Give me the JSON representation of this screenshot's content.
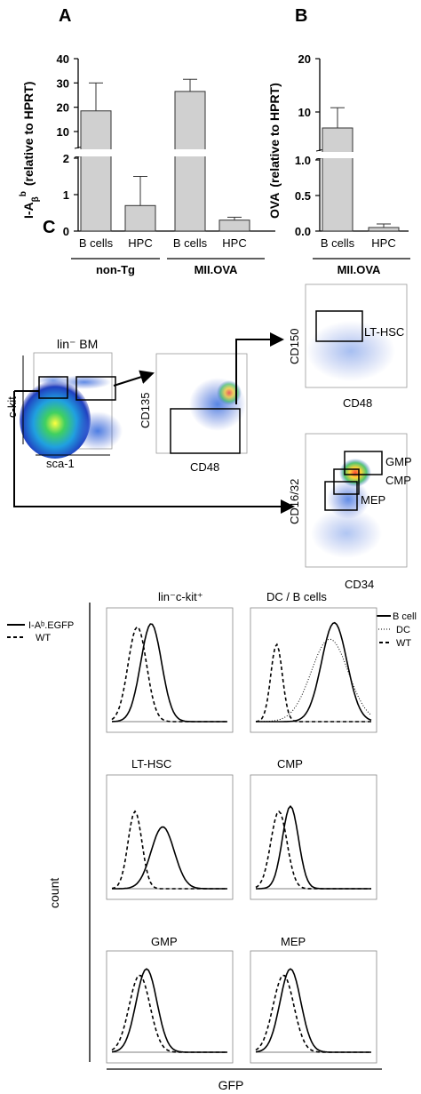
{
  "panels": {
    "a": "A",
    "b": "B",
    "c": "C"
  },
  "chart_data": [
    {
      "type": "bar",
      "panel": "A",
      "ylabel_main": "I-A",
      "ylabel_sub": "β",
      "ylabel_sup": "b",
      "ylabel_rest": "(relative to HPRT)",
      "axis_break": true,
      "upper_ticks": [
        "10",
        "20",
        "30",
        "40"
      ],
      "lower_ticks": [
        "0",
        "1",
        "2"
      ],
      "categories": [
        "B cells",
        "HPC",
        "B cells",
        "HPC"
      ],
      "groups": [
        "non-Tg",
        "MII.OVA"
      ],
      "values": [
        18.5,
        0.7,
        26.5,
        0.3
      ],
      "errors": [
        11.5,
        0.8,
        5.0,
        0.08
      ],
      "bar_color": "#d0d0d0"
    },
    {
      "type": "bar",
      "panel": "B",
      "ylabel_main": "OVA",
      "ylabel_rest": "(relative to HPRT)",
      "axis_break": true,
      "upper_ticks": [
        "10",
        "20"
      ],
      "lower_ticks": [
        "0.0",
        "0.5",
        "1.0"
      ],
      "categories": [
        "B cells",
        "HPC"
      ],
      "groups": [
        "MII.OVA"
      ],
      "values": [
        7.0,
        0.05
      ],
      "errors": [
        3.8,
        0.05
      ],
      "bar_color": "#d0d0d0"
    },
    {
      "type": "scatter",
      "panel": "C-gating",
      "plots": [
        {
          "title": "lin⁻ BM",
          "xlabel": "sca-1",
          "ylabel": "c-kit"
        },
        {
          "xlabel": "CD48",
          "ylabel": "CD135"
        },
        {
          "xlabel": "CD48",
          "ylabel": "CD150",
          "gates": [
            "LT-HSC"
          ]
        },
        {
          "xlabel": "CD34",
          "ylabel": "CD16/32",
          "gates": [
            "GMP",
            "CMP",
            "MEP"
          ]
        }
      ]
    },
    {
      "type": "line",
      "panel": "C-histograms",
      "xlabel": "GFP",
      "ylabel": "count",
      "legend_left": [
        "I-Aᵇ.EGFP",
        "WT"
      ],
      "legend_right": [
        "B cell",
        "DC",
        "WT"
      ],
      "titles": [
        "lin⁻c-kit⁺",
        "DC / B cells",
        "LT-HSC",
        "CMP",
        "GMP",
        "MEP"
      ]
    }
  ]
}
